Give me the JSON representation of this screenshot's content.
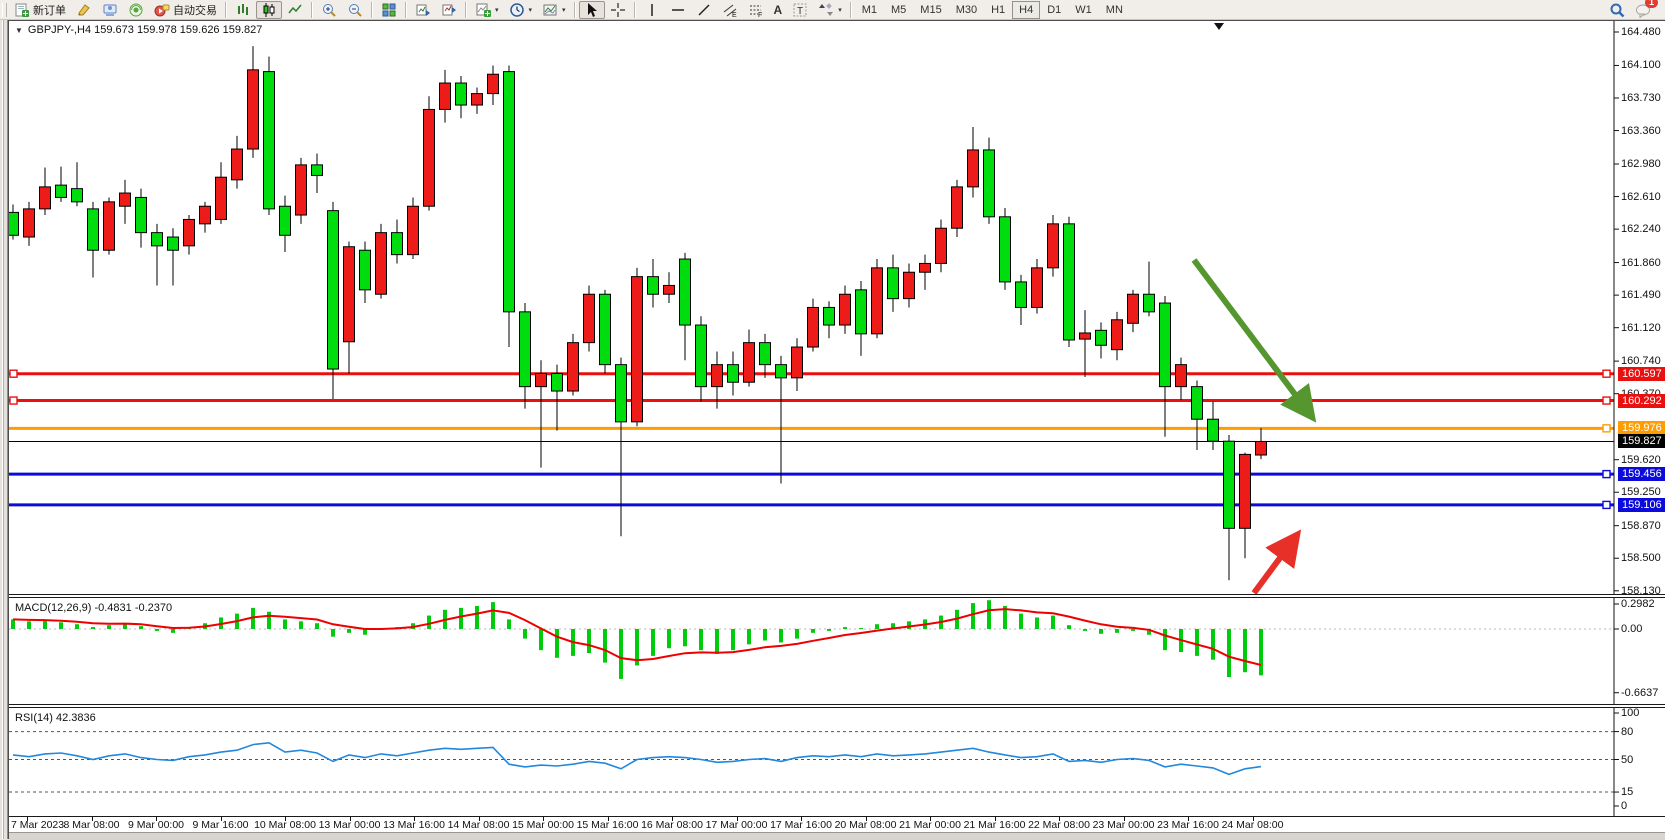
{
  "toolbar": {
    "new_order_label": "新订单",
    "autotrading_label": "自动交易",
    "channel_tool_sub": "E",
    "fibo_tool_sub": "F",
    "text_tool_label": "A",
    "label_tool_label": "T",
    "timeframes": [
      "M1",
      "M5",
      "M15",
      "M30",
      "H1",
      "H4",
      "D1",
      "W1",
      "MN"
    ],
    "active_timeframe": "H4",
    "notification_badge": "1"
  },
  "chart": {
    "header": "GBPJPY-,H4  159.673 159.978 159.626 159.827",
    "macd_label": "MACD(12,26,9) -0.4831 -0.2370",
    "rsi_label": "RSI(14) 42.3836"
  },
  "colors": {
    "bull": "#ed1c19",
    "bear": "#00dd0f",
    "outline": "#000000",
    "line_red": "#ea1010",
    "line_orange": "#ff9c00",
    "line_blue": "#0b0bdb",
    "line_black": "#000000",
    "macd_hist": "#00cc0c",
    "macd_signal": "#ee0000",
    "rsi_line": "#2288dd",
    "arrow_green": "#55962f",
    "arrow_red": "#e63028"
  },
  "chart_data": {
    "type": "candlestick",
    "symbol": "GBPJPY-",
    "timeframe": "H4",
    "ohlc_current": {
      "open": "159.673",
      "high": "159.978",
      "low": "159.626",
      "close": "159.827"
    },
    "price_axis_labels": [
      "164.480",
      "164.100",
      "163.730",
      "163.360",
      "162.980",
      "162.610",
      "162.240",
      "161.860",
      "161.490",
      "161.120",
      "160.740",
      "160.370",
      "159.620",
      "159.250",
      "158.870",
      "158.500",
      "158.130"
    ],
    "hlines": [
      {
        "price": 160.597,
        "label": "160.597",
        "color_key": "line_red",
        "width": 3
      },
      {
        "price": 160.292,
        "label": "160.292",
        "color_key": "line_red",
        "width": 3
      },
      {
        "price": 159.976,
        "label": "159.976",
        "color_key": "line_orange",
        "width": 3
      },
      {
        "price": 159.827,
        "label": "159.827",
        "color_key": "line_black",
        "width": 1
      },
      {
        "price": 159.456,
        "label": "159.456",
        "color_key": "line_blue",
        "width": 3
      },
      {
        "price": 159.106,
        "label": "159.106",
        "color_key": "line_blue",
        "width": 3
      }
    ],
    "candles": [
      [
        162.43,
        162.52,
        162.12,
        162.17
      ],
      [
        162.15,
        162.55,
        162.05,
        162.47
      ],
      [
        162.47,
        162.94,
        162.4,
        162.72
      ],
      [
        162.74,
        162.95,
        162.55,
        162.6
      ],
      [
        162.7,
        163.0,
        162.5,
        162.55
      ],
      [
        162.47,
        162.55,
        161.69,
        162.0
      ],
      [
        162.0,
        162.6,
        161.95,
        162.55
      ],
      [
        162.5,
        162.8,
        162.3,
        162.65
      ],
      [
        162.6,
        162.7,
        162.03,
        162.2
      ],
      [
        162.2,
        162.3,
        161.6,
        162.05
      ],
      [
        162.15,
        162.25,
        161.6,
        162.0
      ],
      [
        162.05,
        162.4,
        161.95,
        162.35
      ],
      [
        162.3,
        162.55,
        162.2,
        162.5
      ],
      [
        162.35,
        163.0,
        162.3,
        162.83
      ],
      [
        162.8,
        163.3,
        162.7,
        163.15
      ],
      [
        163.15,
        164.32,
        163.05,
        164.05
      ],
      [
        164.03,
        164.2,
        162.4,
        162.47
      ],
      [
        162.5,
        162.62,
        161.98,
        162.17
      ],
      [
        162.4,
        163.05,
        162.3,
        162.97
      ],
      [
        162.97,
        163.1,
        162.65,
        162.85
      ],
      [
        162.45,
        162.55,
        160.31,
        160.65
      ],
      [
        160.96,
        162.1,
        160.6,
        162.04
      ],
      [
        162.0,
        162.1,
        161.4,
        161.55
      ],
      [
        161.5,
        162.3,
        161.45,
        162.2
      ],
      [
        162.2,
        162.35,
        161.85,
        161.95
      ],
      [
        161.95,
        162.6,
        161.9,
        162.5
      ],
      [
        162.5,
        163.75,
        162.45,
        163.6
      ],
      [
        163.6,
        164.05,
        163.45,
        163.9
      ],
      [
        163.9,
        163.98,
        163.5,
        163.65
      ],
      [
        163.65,
        163.85,
        163.55,
        163.78
      ],
      [
        163.78,
        164.1,
        163.65,
        164.0
      ],
      [
        164.03,
        164.1,
        160.9,
        161.3
      ],
      [
        161.3,
        161.4,
        160.2,
        160.45
      ],
      [
        160.45,
        160.75,
        159.53,
        160.6
      ],
      [
        160.6,
        160.7,
        159.95,
        160.4
      ],
      [
        160.4,
        161.05,
        160.35,
        160.95
      ],
      [
        160.95,
        161.6,
        160.85,
        161.5
      ],
      [
        161.5,
        161.55,
        160.6,
        160.7
      ],
      [
        160.7,
        160.78,
        158.75,
        160.05
      ],
      [
        160.05,
        161.8,
        160.0,
        161.7
      ],
      [
        161.7,
        161.9,
        161.35,
        161.5
      ],
      [
        161.5,
        161.75,
        161.4,
        161.6
      ],
      [
        161.9,
        161.97,
        160.75,
        161.15
      ],
      [
        161.15,
        161.25,
        160.28,
        160.45
      ],
      [
        160.45,
        160.85,
        160.2,
        160.7
      ],
      [
        160.7,
        160.85,
        160.35,
        160.5
      ],
      [
        160.5,
        161.1,
        160.45,
        160.95
      ],
      [
        160.95,
        161.05,
        160.55,
        160.7
      ],
      [
        160.7,
        160.8,
        159.35,
        160.55
      ],
      [
        160.55,
        161.0,
        160.4,
        160.9
      ],
      [
        160.9,
        161.45,
        160.85,
        161.35
      ],
      [
        161.35,
        161.42,
        161.0,
        161.15
      ],
      [
        161.15,
        161.6,
        161.05,
        161.5
      ],
      [
        161.55,
        161.65,
        160.8,
        161.05
      ],
      [
        161.05,
        161.9,
        161.0,
        161.8
      ],
      [
        161.8,
        161.95,
        161.3,
        161.45
      ],
      [
        161.45,
        161.85,
        161.35,
        161.75
      ],
      [
        161.75,
        161.95,
        161.55,
        161.85
      ],
      [
        161.85,
        162.35,
        161.75,
        162.25
      ],
      [
        162.25,
        162.8,
        162.15,
        162.72
      ],
      [
        162.72,
        163.4,
        162.6,
        163.14
      ],
      [
        163.14,
        163.28,
        162.3,
        162.38
      ],
      [
        162.38,
        162.48,
        161.55,
        161.64
      ],
      [
        161.64,
        161.72,
        161.15,
        161.35
      ],
      [
        161.35,
        161.9,
        161.28,
        161.8
      ],
      [
        161.8,
        162.4,
        161.7,
        162.3
      ],
      [
        162.3,
        162.38,
        160.9,
        160.98
      ],
      [
        160.99,
        161.32,
        160.56,
        161.06
      ],
      [
        161.09,
        161.18,
        160.77,
        160.92
      ],
      [
        160.87,
        161.3,
        160.75,
        161.21
      ],
      [
        161.17,
        161.55,
        161.07,
        161.5
      ],
      [
        161.5,
        161.87,
        161.25,
        161.3
      ],
      [
        161.4,
        161.48,
        159.88,
        160.45
      ],
      [
        160.45,
        160.78,
        160.3,
        160.7
      ],
      [
        160.45,
        160.52,
        159.73,
        160.08
      ],
      [
        160.08,
        160.28,
        159.73,
        159.83
      ],
      [
        159.83,
        159.9,
        158.25,
        158.84
      ],
      [
        158.84,
        159.7,
        158.5,
        159.68
      ],
      [
        159.673,
        159.978,
        159.626,
        159.827
      ]
    ],
    "x_axis_labels": [
      "7 Mar 2023",
      "8 Mar 08:00",
      "9 Mar 00:00",
      "9 Mar 16:00",
      "10 Mar 08:00",
      "13 Mar 00:00",
      "13 Mar 16:00",
      "14 Mar 08:00",
      "15 Mar 00:00",
      "15 Mar 16:00",
      "16 Mar 08:00",
      "17 Mar 00:00",
      "17 Mar 16:00",
      "20 Mar 08:00",
      "21 Mar 00:00",
      "21 Mar 16:00",
      "22 Mar 08:00",
      "23 Mar 00:00",
      "23 Mar 16:00",
      "24 Mar 08:00"
    ],
    "indicators": [
      {
        "name": "MACD(12,26,9)",
        "values": [
          -0.4831,
          -0.237
        ],
        "axis_labels": [
          "0.2982",
          "0.00",
          "-0.6637"
        ],
        "axis_values": [
          0.2982,
          0,
          -0.6637
        ],
        "histogram": [
          0.1,
          0.08,
          0.09,
          0.07,
          0.05,
          0.02,
          0.04,
          0.06,
          0.03,
          -0.02,
          -0.04,
          0.02,
          0.06,
          0.12,
          0.16,
          0.22,
          0.18,
          0.1,
          0.08,
          0.06,
          -0.08,
          -0.04,
          -0.06,
          0.0,
          0.02,
          0.06,
          0.14,
          0.2,
          0.22,
          0.24,
          0.28,
          0.1,
          -0.1,
          -0.22,
          -0.3,
          -0.28,
          -0.25,
          -0.35,
          -0.52,
          -0.38,
          -0.28,
          -0.2,
          -0.18,
          -0.22,
          -0.26,
          -0.22,
          -0.16,
          -0.12,
          -0.14,
          -0.1,
          -0.04,
          -0.02,
          0.02,
          0.01,
          0.05,
          0.06,
          0.08,
          0.1,
          0.14,
          0.2,
          0.27,
          0.3,
          0.24,
          0.16,
          0.12,
          0.14,
          0.04,
          -0.02,
          -0.05,
          -0.04,
          -0.02,
          -0.06,
          -0.22,
          -0.24,
          -0.28,
          -0.32,
          -0.5,
          -0.45,
          -0.4831
        ]
      },
      {
        "name": "RSI(14)",
        "value": 42.3836,
        "axis_labels": [
          "100",
          "80",
          "50",
          "15",
          "0"
        ],
        "axis_values": [
          100,
          80,
          50,
          15,
          0
        ],
        "dashed_levels": [
          80,
          50,
          15
        ],
        "series": [
          55,
          53,
          56,
          57,
          54,
          50,
          54,
          56,
          52,
          50,
          49,
          53,
          55,
          58,
          60,
          66,
          68,
          58,
          60,
          57,
          48,
          55,
          52,
          56,
          54,
          57,
          60,
          62,
          61,
          62,
          63,
          45,
          42,
          44,
          43,
          45,
          48,
          46,
          40,
          50,
          52,
          53,
          52,
          50,
          47,
          48,
          50,
          51,
          48,
          52,
          54,
          53,
          55,
          53,
          56,
          54,
          55,
          56,
          58,
          60,
          62,
          58,
          55,
          52,
          53,
          56,
          48,
          49,
          47,
          50,
          51,
          49,
          42,
          45,
          43,
          41,
          34,
          40,
          42.38
        ]
      }
    ],
    "annotations": [
      {
        "type": "arrow",
        "color_key": "arrow_green",
        "from": [
          1185,
          239
        ],
        "to": [
          1300,
          392
        ]
      },
      {
        "type": "arrow",
        "color_key": "arrow_red",
        "from": [
          1245,
          572
        ],
        "to": [
          1285,
          518
        ]
      }
    ],
    "ylim_main": [
      158.13,
      164.48
    ],
    "ylim_macd": [
      -0.6637,
      0.2982
    ],
    "ylim_rsi": [
      0,
      100
    ]
  }
}
